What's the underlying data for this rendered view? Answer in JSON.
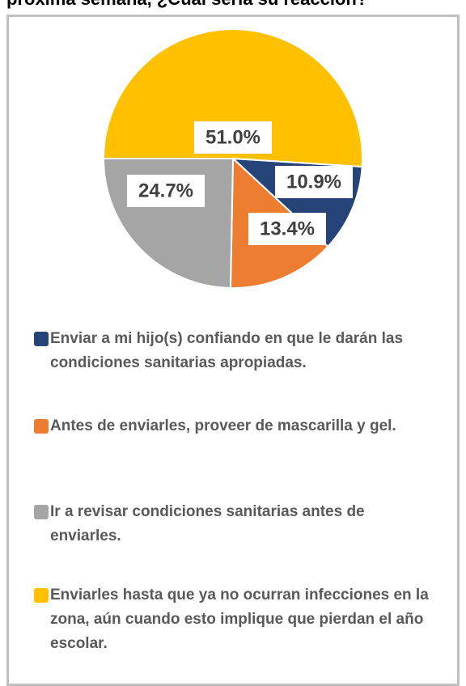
{
  "chart_data": {
    "type": "pie",
    "title": "próxima semana, ¿Cuál sería su reacción?",
    "categories": [
      "Enviar a mi hijo(s) confiando en que le darán las condiciones sanitarias apropiadas.",
      "Antes de enviarles, proveer de mascarilla y gel.",
      "Ir a revisar condiciones sanitarias antes de enviarles.",
      "Enviarles hasta que ya no ocurran infecciones en la zona, aún cuando esto implique que pierdan el año escolar."
    ],
    "values": [
      10.9,
      13.4,
      24.7,
      51.0
    ],
    "value_labels": [
      "10.9%",
      "13.4%",
      "24.7%",
      "51.0%"
    ],
    "colors": [
      "#264478",
      "#ed7d31",
      "#a5a5a5",
      "#ffc000"
    ]
  }
}
